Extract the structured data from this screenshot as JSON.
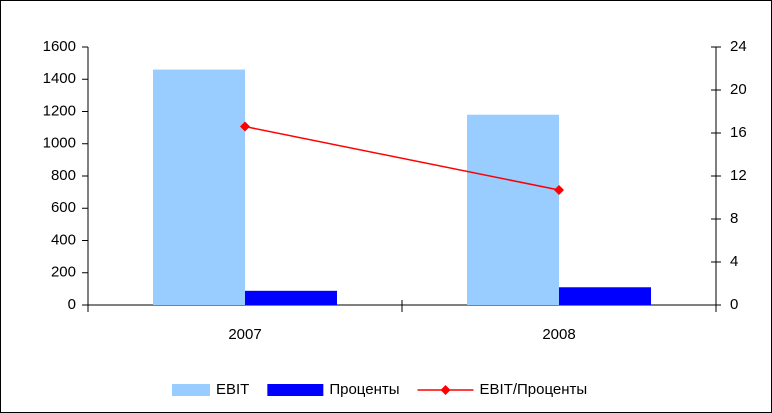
{
  "chart_data": {
    "type": "bar",
    "categories": [
      "2007",
      "2008"
    ],
    "series": [
      {
        "name": "EBIT",
        "color": "#99ccff",
        "values": [
          1460,
          1180
        ]
      },
      {
        "name": "Проценты",
        "color": "#0000ff",
        "values": [
          88,
          110
        ]
      },
      {
        "name": "EBIT/Проценты",
        "color": "#ff0000",
        "type": "line",
        "axis": "y2",
        "values": [
          16.6,
          10.7
        ]
      }
    ],
    "ylim": [
      0,
      1600
    ],
    "yticks": [
      0,
      200,
      400,
      600,
      800,
      1000,
      1200,
      1400,
      1600
    ],
    "y2lim": [
      0,
      24
    ],
    "y2ticks": [
      0,
      4,
      8,
      12,
      16,
      20,
      24
    ],
    "grid": false,
    "legend": "bottom"
  }
}
